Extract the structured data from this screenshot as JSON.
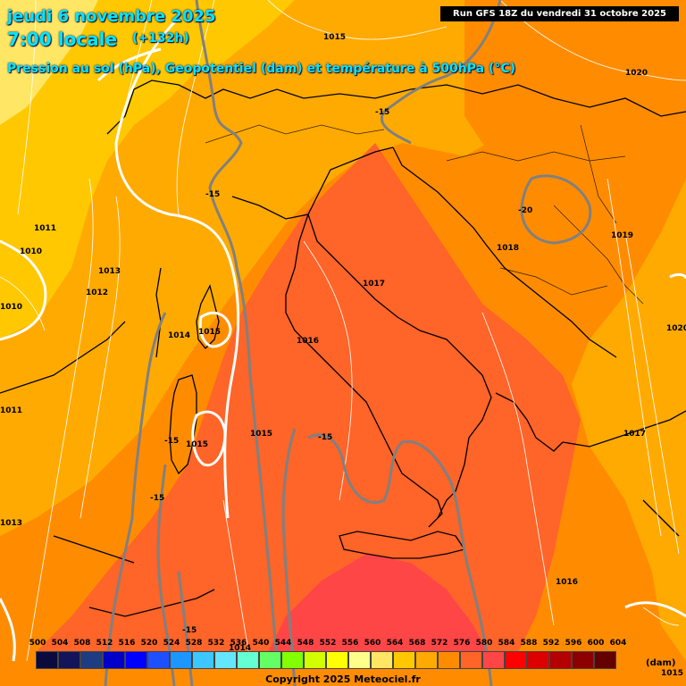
{
  "header": {
    "date": "jeudi 6 novembre 2025",
    "time": "7:00 locale",
    "offset": "(+132h)",
    "description": "Pression au sol (hPa), Geopotentiel (dam) et température à 500hPa (°C)"
  },
  "run_info": "Run GFS 18Z du vendredi 31 octobre 2025",
  "scale": {
    "unit": "(dam)",
    "levels": [
      {
        "value": "500",
        "color": "#0a0a3c"
      },
      {
        "value": "504",
        "color": "#14145a"
      },
      {
        "value": "508",
        "color": "#1e3c82"
      },
      {
        "value": "512",
        "color": "#0000c8"
      },
      {
        "value": "516",
        "color": "#0000ff"
      },
      {
        "value": "520",
        "color": "#1e50ff"
      },
      {
        "value": "524",
        "color": "#1e96ff"
      },
      {
        "value": "528",
        "color": "#3cc8ff"
      },
      {
        "value": "532",
        "color": "#64e6ff"
      },
      {
        "value": "536",
        "color": "#64ffd2"
      },
      {
        "value": "540",
        "color": "#64ff64"
      },
      {
        "value": "544",
        "color": "#82ff00"
      },
      {
        "value": "548",
        "color": "#d2ff00"
      },
      {
        "value": "552",
        "color": "#ffff00"
      },
      {
        "value": "556",
        "color": "#ffff8c"
      },
      {
        "value": "560",
        "color": "#ffe664"
      },
      {
        "value": "564",
        "color": "#ffc800"
      },
      {
        "value": "568",
        "color": "#ffaa00"
      },
      {
        "value": "572",
        "color": "#ff8c00"
      },
      {
        "value": "576",
        "color": "#ff6428"
      },
      {
        "value": "580",
        "color": "#ff4646"
      },
      {
        "value": "584",
        "color": "#ff0000"
      },
      {
        "value": "588",
        "color": "#dc0000"
      },
      {
        "value": "592",
        "color": "#b40000"
      },
      {
        "value": "596",
        "color": "#8c0000"
      },
      {
        "value": "600",
        "color": "#640000"
      },
      {
        "value": "604",
        "color": "#000000"
      }
    ]
  },
  "pressure_labels": [
    "1015",
    "1020",
    "1011",
    "1010",
    "1013",
    "1012",
    "1010",
    "1014",
    "1015",
    "1015",
    "1011",
    "1013",
    "1017",
    "1016",
    "1015",
    "1018",
    "1019",
    "1020",
    "1017",
    "1016",
    "1014",
    "1015"
  ],
  "temperature_labels": [
    "-15",
    "-15",
    "-20",
    "-15",
    "-15",
    "-15",
    "-15"
  ],
  "copyright": "Copyright 2025 Meteociel.fr"
}
